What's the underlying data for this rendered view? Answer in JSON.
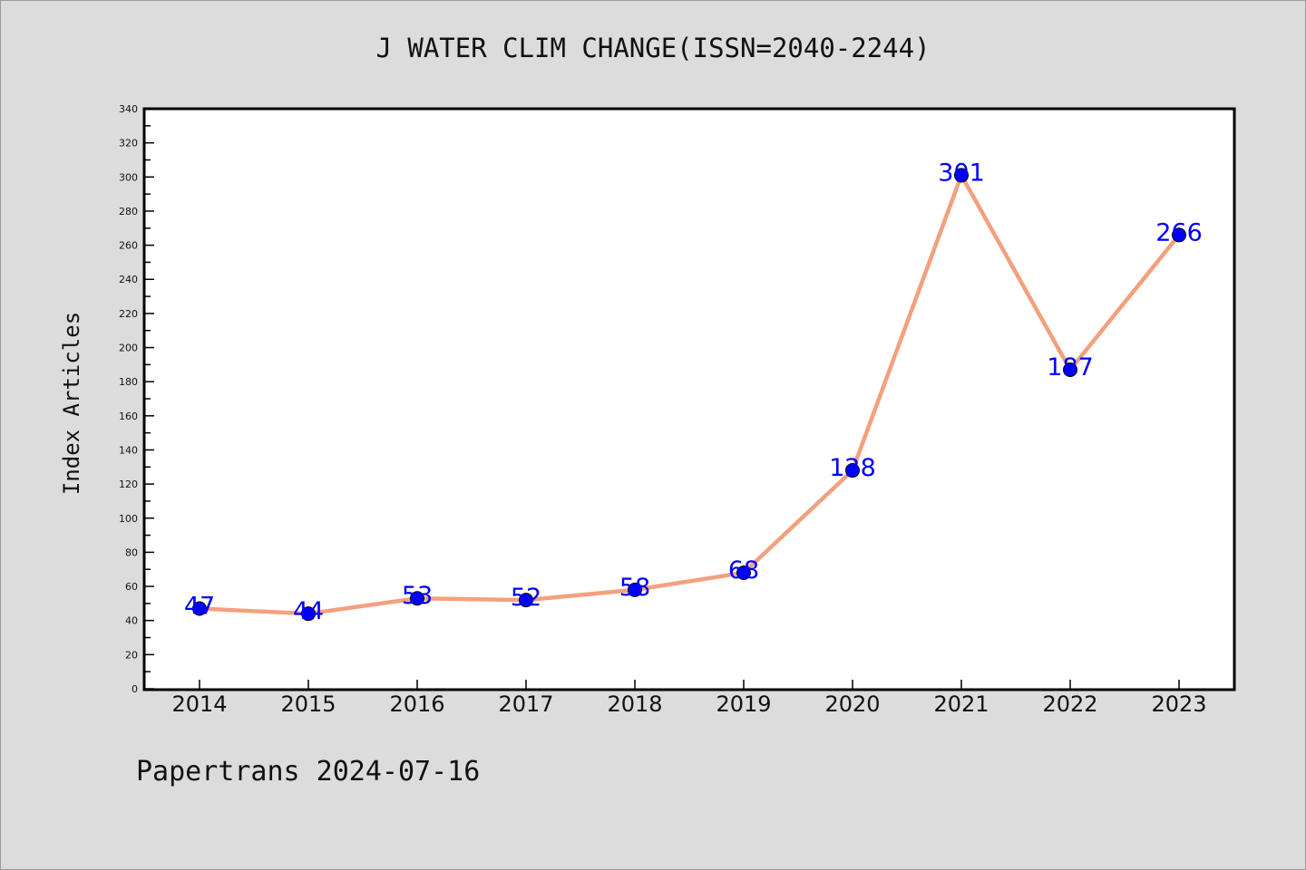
{
  "chart_data": {
    "type": "line",
    "title": "J WATER CLIM CHANGE(ISSN=2040-2244)",
    "xlabel": "",
    "ylabel": "Index Articles",
    "categories": [
      "2014",
      "2015",
      "2016",
      "2017",
      "2018",
      "2019",
      "2020",
      "2021",
      "2022",
      "2023"
    ],
    "values": [
      47,
      44,
      53,
      52,
      58,
      68,
      128,
      301,
      187,
      266
    ],
    "data_labels": [
      "47",
      "44",
      "53",
      "52",
      "58",
      "68",
      "128",
      "301",
      "187",
      "266"
    ],
    "ylim": [
      0,
      340
    ],
    "y_major_step": 20,
    "y_minor_step": 10,
    "y_ticks": [
      "0",
      "20",
      "40",
      "60",
      "80",
      "100",
      "120",
      "140",
      "160",
      "180",
      "200",
      "220",
      "240",
      "260",
      "280",
      "300",
      "320",
      "340"
    ],
    "grid": false,
    "legend": "none",
    "colors": {
      "line": "#f4a07e",
      "marker": "#0000ff",
      "data_label": "#0000ff",
      "plot_background": "#ffffff",
      "page_background": "#dcdcdc"
    }
  },
  "footer": {
    "text": "Papertrans 2024-07-16"
  }
}
